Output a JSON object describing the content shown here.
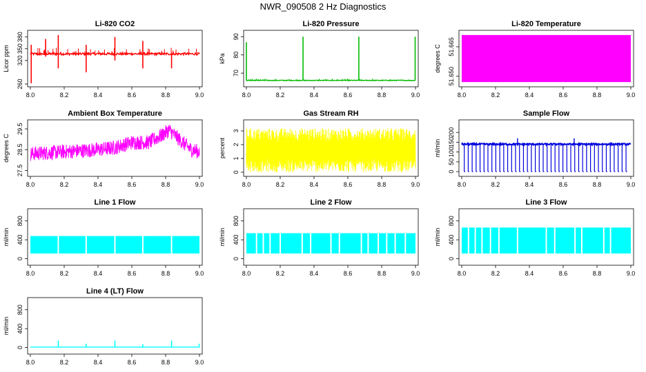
{
  "page": {
    "title": "NWR_090508  2 Hz Diagnostics"
  },
  "chart_data": [
    {
      "type": "line",
      "title": "Li-820 CO2",
      "ylabel": "Licor ppm",
      "xlim": [
        8.0,
        9.0
      ],
      "ylim": [
        260,
        390
      ],
      "xticks": [
        "8.0",
        "8.2",
        "8.4",
        "8.6",
        "8.8",
        "9.0"
      ],
      "yticks": [
        {
          "v": 260,
          "label": "260"
        },
        {
          "v": 320,
          "label": "320"
        },
        {
          "v": 350,
          "label": "350"
        },
        {
          "v": 380,
          "label": "380"
        }
      ],
      "color": "#ff0000",
      "style": "noisy",
      "base": 337,
      "noise": 3,
      "spikes": [
        {
          "x": 8.005,
          "lo": 262,
          "hi": 360
        },
        {
          "x": 8.09,
          "lo": 330,
          "hi": 375
        },
        {
          "x": 8.165,
          "lo": 300,
          "hi": 385
        },
        {
          "x": 8.33,
          "lo": 290,
          "hi": 360
        },
        {
          "x": 8.5,
          "lo": 320,
          "hi": 380
        },
        {
          "x": 8.665,
          "lo": 300,
          "hi": 370
        },
        {
          "x": 8.835,
          "lo": 300,
          "hi": 340
        }
      ]
    },
    {
      "type": "line",
      "title": "Li-820 Pressure",
      "ylabel": "kPa",
      "xlim": [
        8.0,
        9.0
      ],
      "ylim": [
        64,
        92
      ],
      "xticks": [
        "8.0",
        "8.2",
        "8.4",
        "8.6",
        "8.8",
        "9.0"
      ],
      "yticks": [
        {
          "v": 70,
          "label": "70"
        },
        {
          "v": 80,
          "label": "80"
        },
        {
          "v": 90,
          "label": "90"
        }
      ],
      "color": "#00bb00",
      "style": "noisy",
      "base": 66,
      "noise": 0.2,
      "spikes": [
        {
          "x": 8.0,
          "lo": 66,
          "hi": 87
        },
        {
          "x": 8.335,
          "lo": 66,
          "hi": 90
        },
        {
          "x": 8.665,
          "lo": 66,
          "hi": 90
        },
        {
          "x": 8.998,
          "lo": 66,
          "hi": 90
        }
      ]
    },
    {
      "type": "area",
      "title": "Li-820 Temperature",
      "ylabel": "degrees C",
      "xlim": [
        8.0,
        9.0
      ],
      "ylim": [
        51.646,
        51.672
      ],
      "xticks": [
        "8.0",
        "8.2",
        "8.4",
        "8.6",
        "8.8",
        "9.0"
      ],
      "yticks": [
        {
          "v": 51.65,
          "label": "51.650"
        },
        {
          "v": 51.665,
          "label": "51.665"
        }
      ],
      "color": "#ff00ff",
      "style": "block",
      "lo": 51.647,
      "hi": 51.671
    },
    {
      "type": "line",
      "title": "Ambient Box Temperature",
      "ylabel": "degrees C",
      "xlim": [
        8.0,
        9.0
      ],
      "ylim": [
        27.35,
        29.8
      ],
      "xticks": [
        "8.0",
        "8.2",
        "8.4",
        "8.6",
        "8.8",
        "9.0"
      ],
      "yticks": [
        {
          "v": 27.5,
          "label": "27.5"
        },
        {
          "v": 28.5,
          "label": "28.5"
        },
        {
          "v": 29.5,
          "label": "29.5"
        }
      ],
      "color": "#ff00ff",
      "style": "curve",
      "noise": 0.35,
      "curve": [
        [
          8.0,
          28.3
        ],
        [
          8.2,
          28.4
        ],
        [
          8.4,
          28.5
        ],
        [
          8.5,
          28.6
        ],
        [
          8.6,
          28.85
        ],
        [
          8.7,
          28.85
        ],
        [
          8.78,
          29.2
        ],
        [
          8.82,
          29.45
        ],
        [
          8.88,
          29.0
        ],
        [
          8.95,
          28.5
        ],
        [
          9.0,
          28.4
        ]
      ]
    },
    {
      "type": "line",
      "title": "Gas Stream RH",
      "ylabel": "percent",
      "xlim": [
        8.0,
        9.0
      ],
      "ylim": [
        -0.1,
        3.6
      ],
      "xticks": [
        "8.0",
        "8.2",
        "8.4",
        "8.6",
        "8.8",
        "9.0"
      ],
      "yticks": [
        {
          "v": 0,
          "label": "0"
        },
        {
          "v": 1,
          "label": "1"
        },
        {
          "v": 2,
          "label": "2"
        },
        {
          "v": 3,
          "label": "3"
        }
      ],
      "color": "#ffff00",
      "style": "band",
      "lo": 0.5,
      "hi": 2.7,
      "noise": 0.5
    },
    {
      "type": "line",
      "title": "Sample Flow",
      "ylabel": "ml/min",
      "xlim": [
        8.0,
        9.0
      ],
      "ylim": [
        -10,
        250
      ],
      "xticks": [
        "8.0",
        "8.2",
        "8.4",
        "8.6",
        "8.8",
        "9.0"
      ],
      "yticks": [
        {
          "v": 0,
          "label": "0"
        },
        {
          "v": 50,
          "label": "50"
        },
        {
          "v": 100,
          "label": "100"
        },
        {
          "v": 150,
          "label": "150"
        },
        {
          "v": 200,
          "label": "200"
        }
      ],
      "color": "#0000dd",
      "style": "dropouts",
      "base": 140,
      "noise": 4,
      "drop": 0,
      "ndrops": 42,
      "spike_hi": 170
    },
    {
      "type": "area",
      "title": "Line 1 Flow",
      "ylabel": "ml/min",
      "xlim": [
        8.0,
        9.0
      ],
      "ylim": [
        -80,
        1000
      ],
      "xticks": [
        "8.0",
        "8.2",
        "8.4",
        "8.6",
        "8.8",
        "9.0"
      ],
      "yticks": [
        {
          "v": 0,
          "label": "0"
        },
        {
          "v": 400,
          "label": "400"
        },
        {
          "v": 800,
          "label": "800"
        }
      ],
      "color": "#00ffff",
      "style": "blockgaps",
      "lo": 110,
      "hi": 480,
      "gaps": [
        8.165,
        8.33,
        8.5,
        8.665,
        8.835
      ]
    },
    {
      "type": "area",
      "title": "Line 2 Flow",
      "ylabel": "ml/min",
      "xlim": [
        8.0,
        9.0
      ],
      "ylim": [
        -80,
        1000
      ],
      "xticks": [
        "8.0",
        "8.2",
        "8.4",
        "8.6",
        "8.8",
        "9.0"
      ],
      "yticks": [
        {
          "v": 0,
          "label": "0"
        },
        {
          "v": 400,
          "label": "400"
        },
        {
          "v": 800,
          "label": "800"
        }
      ],
      "color": "#00ffff",
      "style": "blockgaps",
      "lo": 110,
      "hi": 540,
      "gaps": [
        8.06,
        8.1,
        8.14,
        8.2,
        8.33,
        8.38,
        8.5,
        8.55,
        8.68,
        8.72,
        8.78,
        8.83,
        8.88,
        8.94
      ]
    },
    {
      "type": "area",
      "title": "Line 3 Flow",
      "ylabel": "ml/min",
      "xlim": [
        8.0,
        9.0
      ],
      "ylim": [
        -80,
        1000
      ],
      "xticks": [
        "8.0",
        "8.2",
        "8.4",
        "8.6",
        "8.8",
        "9.0"
      ],
      "yticks": [
        {
          "v": 0,
          "label": "0"
        },
        {
          "v": 400,
          "label": "400"
        },
        {
          "v": 800,
          "label": "800"
        }
      ],
      "color": "#00ffff",
      "style": "blockgaps",
      "lo": 110,
      "hi": 660,
      "gaps": [
        8.04,
        8.08,
        8.12,
        8.17,
        8.22,
        8.33,
        8.5,
        8.55,
        8.67,
        8.71,
        8.84,
        8.88
      ]
    },
    {
      "type": "line",
      "title": "Line 4 (LT) Flow",
      "ylabel": "ml/min",
      "xlim": [
        8.0,
        9.0
      ],
      "ylim": [
        -80,
        1000
      ],
      "xticks": [
        "8.0",
        "8.2",
        "8.4",
        "8.6",
        "8.8",
        "9.0"
      ],
      "yticks": [
        {
          "v": 0,
          "label": "0"
        },
        {
          "v": 400,
          "label": "400"
        },
        {
          "v": 800,
          "label": "800"
        }
      ],
      "color": "#00ffff",
      "style": "flatspikes",
      "base": 10,
      "spikes": [
        {
          "x": 8.165,
          "lo": 10,
          "hi": 150
        },
        {
          "x": 8.33,
          "lo": 10,
          "hi": 80
        },
        {
          "x": 8.5,
          "lo": 10,
          "hi": 150
        },
        {
          "x": 8.665,
          "lo": 10,
          "hi": 70
        },
        {
          "x": 8.835,
          "lo": 10,
          "hi": 150
        },
        {
          "x": 8.998,
          "lo": 10,
          "hi": 80
        }
      ]
    }
  ]
}
